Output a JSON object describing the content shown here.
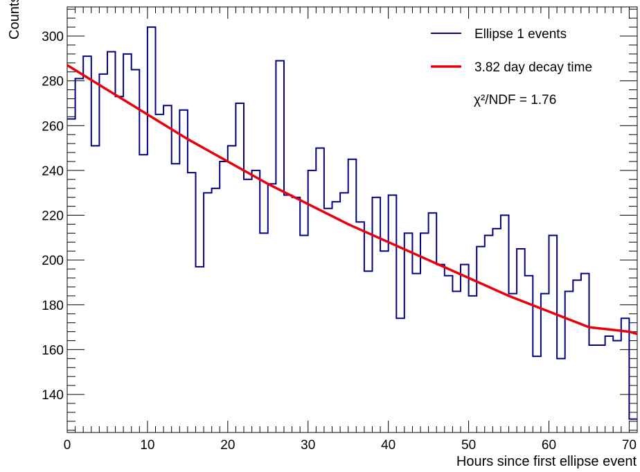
{
  "chart_data": {
    "type": "histogram",
    "xlabel": "Hours since first ellipse event",
    "ylabel": "Counts",
    "xlim": [
      0,
      71
    ],
    "ylim": [
      123,
      313
    ],
    "x_ticks": [
      0,
      10,
      20,
      30,
      40,
      50,
      60,
      70
    ],
    "y_ticks": [
      140,
      160,
      180,
      200,
      220,
      240,
      260,
      280,
      300
    ],
    "grid": false,
    "legend_position": "top-right",
    "series": [
      {
        "name": "Ellipse 1 events",
        "kind": "step-histogram",
        "color": "#000080",
        "bin_width": 1,
        "x_start": 0,
        "values": [
          263,
          281,
          291,
          251,
          283,
          293,
          273,
          292,
          285,
          247,
          304,
          265,
          269,
          243,
          267,
          239,
          197,
          230,
          232,
          244,
          251,
          270,
          236,
          240,
          212,
          234,
          289,
          229,
          228,
          211,
          240,
          250,
          223,
          226,
          230,
          245,
          217,
          195,
          228,
          204,
          229,
          174,
          212,
          194,
          212,
          221,
          198,
          193,
          186,
          198,
          184,
          206,
          211,
          214,
          220,
          185,
          205,
          193,
          157,
          185,
          211,
          156,
          186,
          191,
          194,
          162,
          162,
          166,
          164,
          174,
          129
        ]
      },
      {
        "name": "3.82 day decay time",
        "kind": "fit-curve",
        "color": "#e8000b",
        "x": [
          0,
          5,
          10,
          15,
          20,
          25,
          30,
          35,
          40,
          45,
          50,
          55,
          60,
          65,
          70,
          71
        ],
        "y": [
          287,
          276,
          265,
          254,
          244,
          234,
          225,
          216,
          208,
          200,
          192,
          184,
          177,
          170,
          168,
          167
        ]
      }
    ],
    "annotation": "χ²/NDF = 1.76"
  }
}
